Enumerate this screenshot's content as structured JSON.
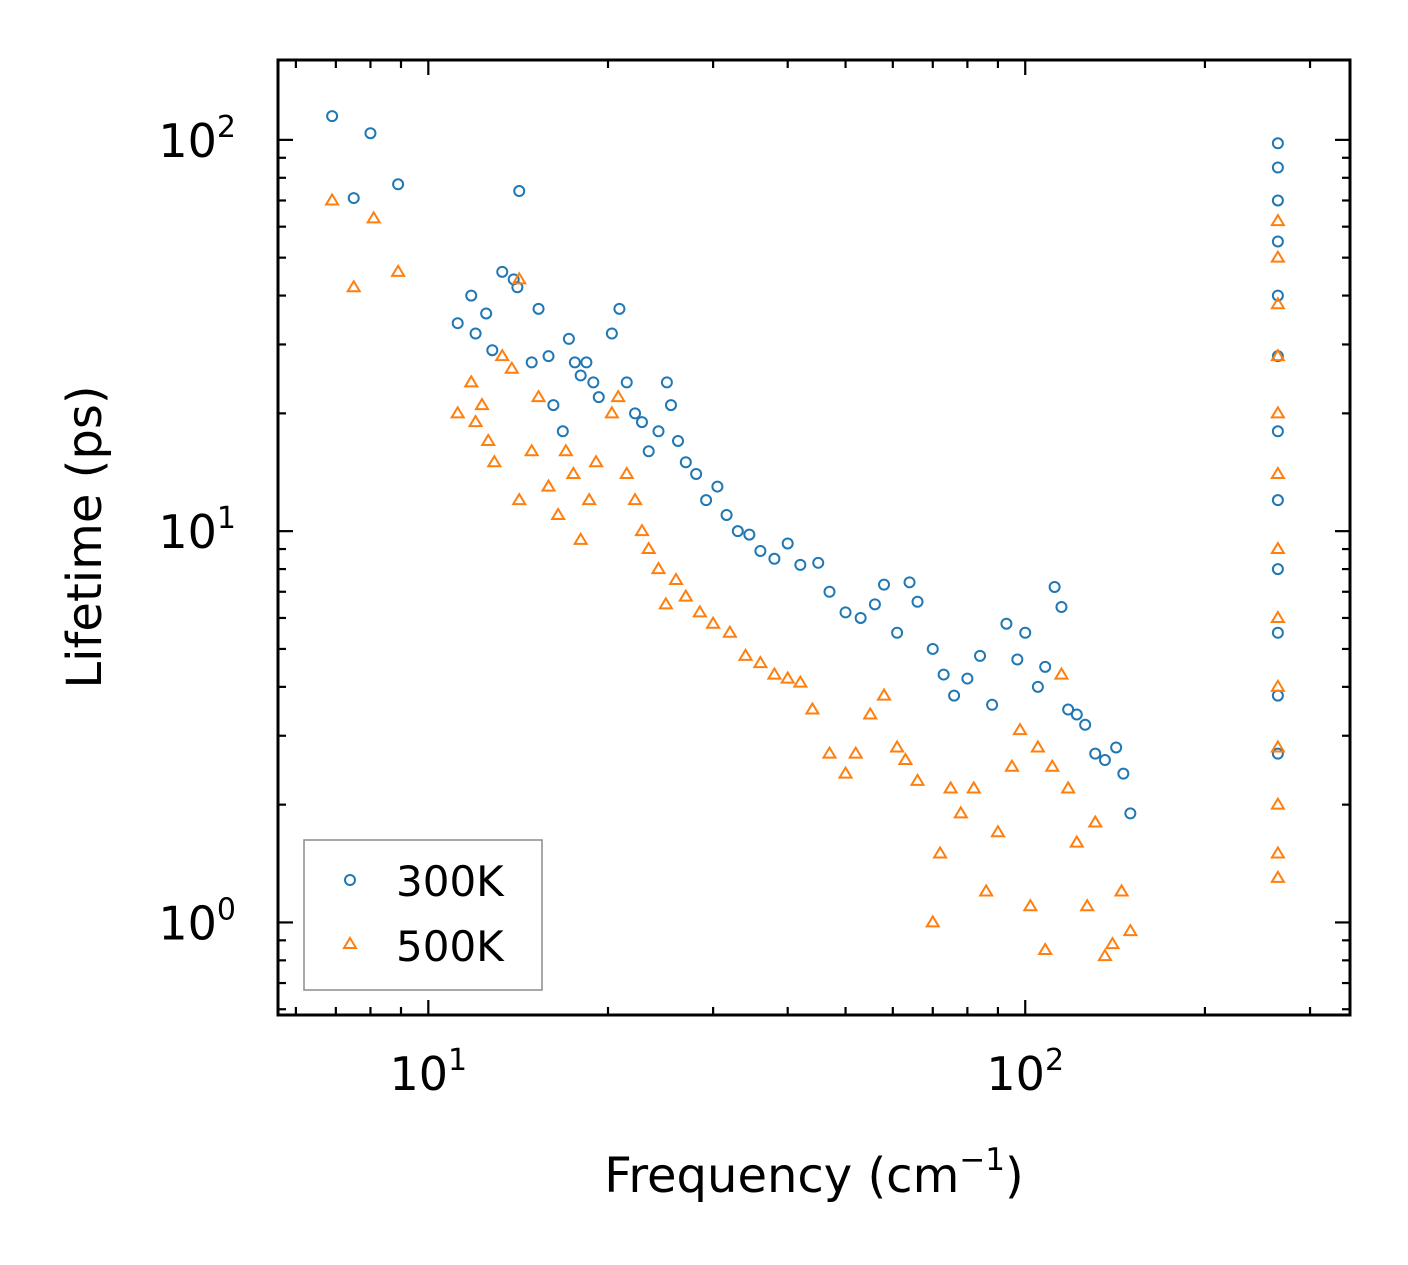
{
  "chart_data": {
    "type": "scatter",
    "xscale": "log",
    "yscale": "log",
    "xlim": [
      5.6,
      350
    ],
    "ylim": [
      0.58,
      160
    ],
    "xlabel": "Frequency (cm",
    "xlabel_sup": "−1",
    "xlabel_close": ")",
    "ylabel": "Lifetime (ps)",
    "x_ticks": [
      {
        "value": 10,
        "base": "10",
        "exp": "1"
      },
      {
        "value": 100,
        "base": "10",
        "exp": "2"
      }
    ],
    "y_ticks": [
      {
        "value": 1,
        "base": "10",
        "exp": "0"
      },
      {
        "value": 10,
        "base": "10",
        "exp": "1"
      },
      {
        "value": 100,
        "base": "10",
        "exp": "2"
      }
    ],
    "legend_position": "lower-left",
    "series": [
      {
        "name": "300K",
        "marker": "circle",
        "color": "#1f77b4",
        "points": [
          [
            6.9,
            115
          ],
          [
            7.5,
            71
          ],
          [
            8.0,
            104
          ],
          [
            8.9,
            77
          ],
          [
            14.2,
            74
          ],
          [
            11.2,
            34
          ],
          [
            11.8,
            40
          ],
          [
            12.0,
            32
          ],
          [
            12.5,
            36
          ],
          [
            12.8,
            29
          ],
          [
            13.3,
            46
          ],
          [
            13.9,
            44
          ],
          [
            14.1,
            42
          ],
          [
            14.9,
            27
          ],
          [
            15.3,
            37
          ],
          [
            15.9,
            28
          ],
          [
            16.2,
            21
          ],
          [
            16.8,
            18
          ],
          [
            17.2,
            31
          ],
          [
            17.6,
            27
          ],
          [
            18.0,
            25
          ],
          [
            18.4,
            27
          ],
          [
            18.9,
            24
          ],
          [
            19.3,
            22
          ],
          [
            20.3,
            32
          ],
          [
            20.9,
            37
          ],
          [
            21.5,
            24
          ],
          [
            22.2,
            20
          ],
          [
            22.8,
            19
          ],
          [
            23.4,
            16
          ],
          [
            24.3,
            18
          ],
          [
            25.1,
            24
          ],
          [
            25.5,
            21
          ],
          [
            26.2,
            17
          ],
          [
            27.0,
            15
          ],
          [
            28.1,
            14
          ],
          [
            29.2,
            12
          ],
          [
            30.5,
            13
          ],
          [
            31.6,
            11
          ],
          [
            33.0,
            10
          ],
          [
            34.5,
            9.8
          ],
          [
            36.0,
            8.9
          ],
          [
            38.0,
            8.5
          ],
          [
            40.0,
            9.3
          ],
          [
            42.0,
            8.2
          ],
          [
            45.0,
            8.3
          ],
          [
            47.0,
            7.0
          ],
          [
            50.0,
            6.2
          ],
          [
            53.0,
            6.0
          ],
          [
            56.0,
            6.5
          ],
          [
            58.0,
            7.3
          ],
          [
            61.0,
            5.5
          ],
          [
            64.0,
            7.4
          ],
          [
            66.0,
            6.6
          ],
          [
            70.0,
            5.0
          ],
          [
            73.0,
            4.3
          ],
          [
            76.0,
            3.8
          ],
          [
            80.0,
            4.2
          ],
          [
            84.0,
            4.8
          ],
          [
            88.0,
            3.6
          ],
          [
            93.0,
            5.8
          ],
          [
            97.0,
            4.7
          ],
          [
            100.0,
            5.5
          ],
          [
            105.0,
            4.0
          ],
          [
            108.0,
            4.5
          ],
          [
            112.0,
            7.2
          ],
          [
            115.0,
            6.4
          ],
          [
            118.0,
            3.5
          ],
          [
            122.0,
            3.4
          ],
          [
            126.0,
            3.2
          ],
          [
            131.0,
            2.7
          ],
          [
            136.0,
            2.6
          ],
          [
            142.0,
            2.8
          ],
          [
            146.0,
            2.4
          ],
          [
            150.0,
            1.9
          ],
          [
            265.0,
            98
          ],
          [
            265.0,
            85
          ],
          [
            265.0,
            70
          ],
          [
            265.0,
            55
          ],
          [
            265.0,
            40
          ],
          [
            265.0,
            28
          ],
          [
            265.0,
            18
          ],
          [
            265.0,
            12
          ],
          [
            265.0,
            8
          ],
          [
            265.0,
            5.5
          ],
          [
            265.0,
            3.8
          ],
          [
            265.0,
            2.7
          ]
        ]
      },
      {
        "name": "500K",
        "marker": "triangle",
        "color": "#ff7f0e",
        "points": [
          [
            6.9,
            70
          ],
          [
            7.5,
            42
          ],
          [
            8.1,
            63
          ],
          [
            8.9,
            46
          ],
          [
            14.2,
            44
          ],
          [
            11.2,
            20
          ],
          [
            11.8,
            24
          ],
          [
            12.0,
            19
          ],
          [
            12.3,
            21
          ],
          [
            12.6,
            17
          ],
          [
            12.9,
            15
          ],
          [
            13.3,
            28
          ],
          [
            13.8,
            26
          ],
          [
            14.2,
            12
          ],
          [
            14.9,
            16
          ],
          [
            15.3,
            22
          ],
          [
            15.9,
            13
          ],
          [
            16.5,
            11
          ],
          [
            17.0,
            16
          ],
          [
            17.5,
            14
          ],
          [
            18.0,
            9.5
          ],
          [
            18.6,
            12
          ],
          [
            19.1,
            15
          ],
          [
            20.3,
            20
          ],
          [
            20.8,
            22
          ],
          [
            21.5,
            14
          ],
          [
            22.2,
            12
          ],
          [
            22.8,
            10
          ],
          [
            23.4,
            9.0
          ],
          [
            24.3,
            8.0
          ],
          [
            25.0,
            6.5
          ],
          [
            26.0,
            7.5
          ],
          [
            27.0,
            6.8
          ],
          [
            28.5,
            6.2
          ],
          [
            30.0,
            5.8
          ],
          [
            32.0,
            5.5
          ],
          [
            34.0,
            4.8
          ],
          [
            36.0,
            4.6
          ],
          [
            38.0,
            4.3
          ],
          [
            40.0,
            4.2
          ],
          [
            42.0,
            4.1
          ],
          [
            44.0,
            3.5
          ],
          [
            47.0,
            2.7
          ],
          [
            50.0,
            2.4
          ],
          [
            52.0,
            2.7
          ],
          [
            55.0,
            3.4
          ],
          [
            58.0,
            3.8
          ],
          [
            61.0,
            2.8
          ],
          [
            63.0,
            2.6
          ],
          [
            66.0,
            2.3
          ],
          [
            70.0,
            1.0
          ],
          [
            72.0,
            1.5
          ],
          [
            75.0,
            2.2
          ],
          [
            78.0,
            1.9
          ],
          [
            82.0,
            2.2
          ],
          [
            86.0,
            1.2
          ],
          [
            90.0,
            1.7
          ],
          [
            95.0,
            2.5
          ],
          [
            98.0,
            3.1
          ],
          [
            102.0,
            1.1
          ],
          [
            105.0,
            2.8
          ],
          [
            108.0,
            0.85
          ],
          [
            111.0,
            2.5
          ],
          [
            115.0,
            4.3
          ],
          [
            118.0,
            2.2
          ],
          [
            122.0,
            1.6
          ],
          [
            127.0,
            1.1
          ],
          [
            131.0,
            1.8
          ],
          [
            136.0,
            0.82
          ],
          [
            140.0,
            0.88
          ],
          [
            145.0,
            1.2
          ],
          [
            150.0,
            0.95
          ],
          [
            265.0,
            62
          ],
          [
            265.0,
            50
          ],
          [
            265.0,
            38
          ],
          [
            265.0,
            28
          ],
          [
            265.0,
            20
          ],
          [
            265.0,
            14
          ],
          [
            265.0,
            9
          ],
          [
            265.0,
            6
          ],
          [
            265.0,
            4
          ],
          [
            265.0,
            2.8
          ],
          [
            265.0,
            2.0
          ],
          [
            265.0,
            1.5
          ],
          [
            265.0,
            1.3
          ]
        ]
      }
    ]
  }
}
